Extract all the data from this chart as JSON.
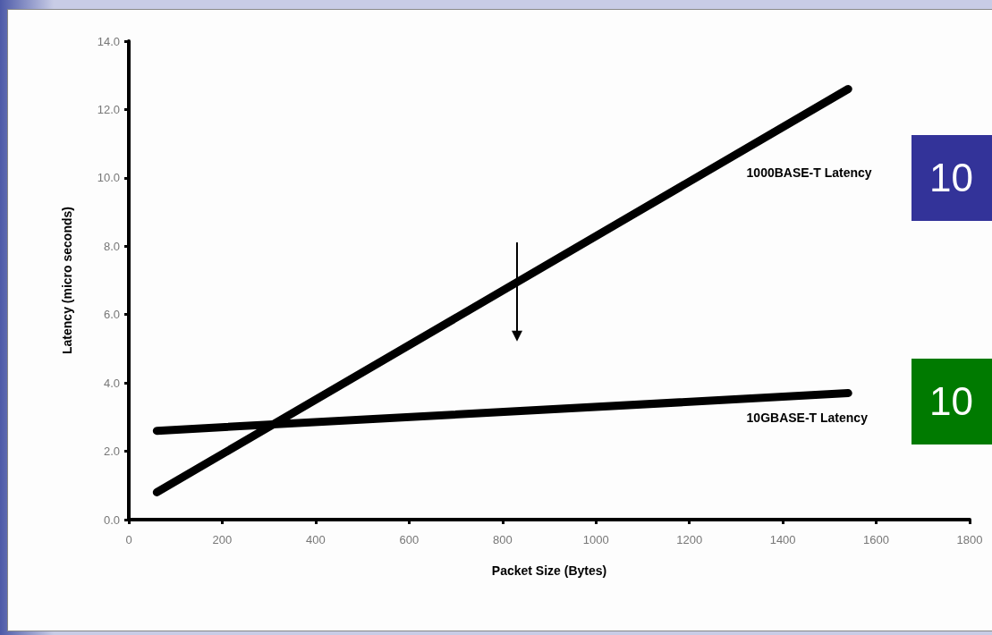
{
  "chart_data": {
    "type": "line",
    "xlabel": "Packet Size (Bytes)",
    "ylabel": "Latency (micro seconds)",
    "xlim": [
      0,
      1800
    ],
    "xticks": [
      0,
      200,
      400,
      600,
      800,
      1000,
      1200,
      1400,
      1600,
      1800
    ],
    "ylim": [
      0,
      14
    ],
    "yticks": [
      {
        "value": 0,
        "label": "0.0"
      },
      {
        "value": 2,
        "label": "2.0"
      },
      {
        "value": 4,
        "label": "4.0"
      },
      {
        "value": 6,
        "label": "6.0"
      },
      {
        "value": 8,
        "label": "8.0"
      },
      {
        "value": 10,
        "label": "10.0"
      },
      {
        "value": 12,
        "label": "12.0"
      },
      {
        "value": 14,
        "label": "14.0"
      }
    ],
    "x": [
      60,
      1540
    ],
    "series": [
      {
        "name": "1000BASE-T Latency",
        "color": "#000000",
        "values": [
          0.8,
          12.6
        ]
      },
      {
        "name": "10GBASE-T Latency",
        "color": "#000000",
        "values": [
          2.6,
          3.7
        ]
      }
    ],
    "annotations": [
      "10",
      "10"
    ],
    "grid": false,
    "legend": false,
    "marker": "none",
    "line_style": "solid"
  }
}
